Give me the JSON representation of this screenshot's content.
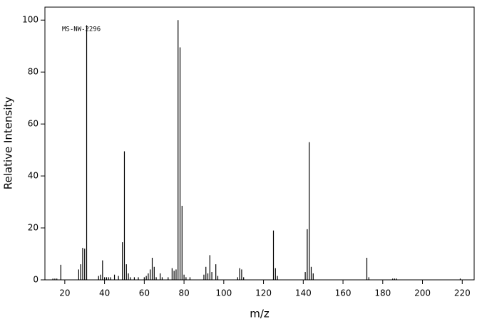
{
  "chart_data": {
    "type": "bar",
    "annotation": "MS-NW-2296",
    "xlabel": "m/z",
    "ylabel": "Relative Intensity",
    "x": [
      14,
      15,
      16,
      18,
      27,
      28,
      29,
      30,
      31,
      37,
      38,
      39,
      40,
      41,
      42,
      43,
      45,
      47,
      49,
      50,
      51,
      52,
      53,
      55,
      57,
      60,
      61,
      62,
      63,
      64,
      65,
      66,
      68,
      69,
      72,
      74,
      75,
      76,
      77,
      78,
      79,
      80,
      81,
      83,
      90,
      91,
      92,
      93,
      94,
      96,
      97,
      107,
      108,
      109,
      110,
      125,
      126,
      127,
      141,
      142,
      143,
      144,
      145,
      172,
      173,
      185,
      186,
      187,
      219
    ],
    "values": [
      0.5,
      0.5,
      0.5,
      5.8,
      4,
      6,
      12.3,
      12,
      98,
      1.5,
      2,
      7.5,
      1,
      1,
      1,
      1,
      2,
      1.5,
      14.5,
      49.5,
      6,
      2.5,
      1,
      1,
      1,
      1,
      1.5,
      2.5,
      4,
      8.5,
      5,
      1,
      2.5,
      1,
      1,
      4.5,
      3.5,
      4,
      100,
      89.5,
      28.5,
      2,
      1,
      1,
      2,
      5,
      2.5,
      9.5,
      3,
      6,
      1.5,
      1,
      4.5,
      4,
      1,
      19,
      4.5,
      1.5,
      3,
      19.5,
      53,
      5,
      2.5,
      8.5,
      1,
      0.5,
      0.5,
      0.5,
      0.5
    ],
    "color": "#000000",
    "xlim": [
      10,
      226
    ],
    "xticks": [
      20,
      40,
      60,
      80,
      100,
      120,
      140,
      160,
      180,
      200,
      220
    ],
    "ylim": [
      0,
      105
    ],
    "yticks": [
      0,
      20,
      40,
      60,
      80,
      100
    ]
  }
}
